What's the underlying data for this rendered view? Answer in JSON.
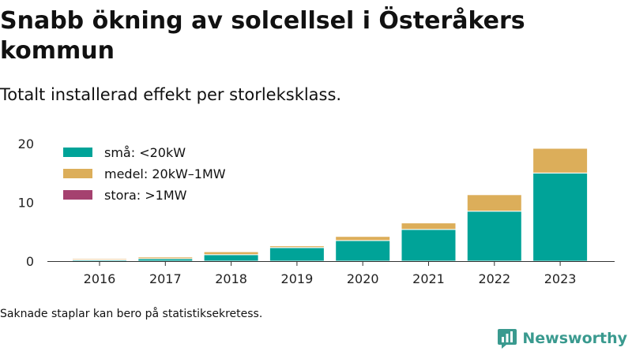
{
  "header": {
    "title": "Snabb ökning av solcellsel i Österåkers kommun",
    "subtitle": "Totalt installerad effekt per storleksklass."
  },
  "footer": {
    "note": "Saknade staplar kan bero på statistiksekretess.",
    "logo_text": "Newsworthy"
  },
  "colors": {
    "sma": "#00a398",
    "medel": "#dcae5a",
    "stora": "#a5416f",
    "axis": "#333333",
    "logo": "#3a9a8f"
  },
  "chart_data": {
    "type": "bar",
    "stacked": true,
    "categories": [
      "2016",
      "2017",
      "2018",
      "2019",
      "2020",
      "2021",
      "2022",
      "2023"
    ],
    "series": [
      {
        "name": "små: <20kW",
        "color": "#00a398",
        "values": [
          0.2,
          0.4,
          1.1,
          2.3,
          3.5,
          5.4,
          8.5,
          15.0
        ]
      },
      {
        "name": "medel: 20kW–1MW",
        "color": "#dcae5a",
        "values": [
          0.2,
          0.3,
          0.5,
          0.3,
          0.7,
          1.1,
          2.8,
          4.2
        ]
      },
      {
        "name": "stora: >1MW",
        "color": "#a5416f",
        "values": [
          0,
          0,
          0,
          0,
          0,
          0,
          0,
          0
        ]
      }
    ],
    "ylim": [
      0,
      20
    ],
    "yticks": [
      0,
      10,
      20
    ],
    "grid": false,
    "legend_position": "top-left"
  }
}
